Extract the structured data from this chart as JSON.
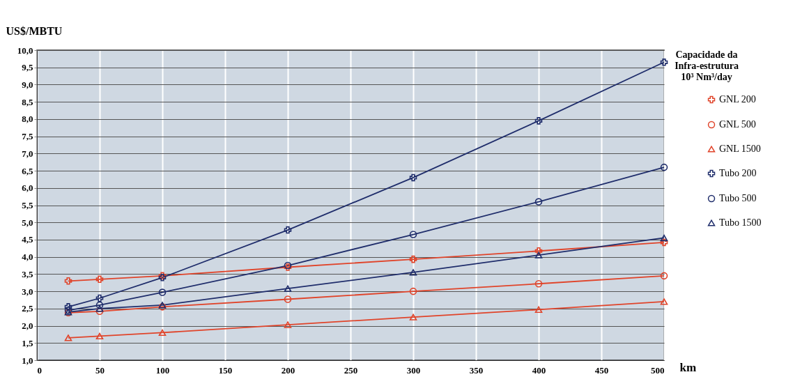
{
  "chart_data": {
    "type": "line",
    "ylabel": "US$/MBTU",
    "xlabel": "km",
    "legend_title": "Capacidade da\nInfra-estrutura\n10³ Nm³/day",
    "legend": "right",
    "grid": true,
    "x": [
      25,
      50,
      100,
      200,
      300,
      400,
      500
    ],
    "xlim": [
      0,
      500
    ],
    "xticks": [
      0,
      50,
      100,
      150,
      200,
      250,
      300,
      350,
      400,
      450,
      500
    ],
    "ylim": [
      1,
      10
    ],
    "yticks": [
      {
        "value": 1,
        "label": "1,0"
      },
      {
        "value": 1.5,
        "label": "1,5"
      },
      {
        "value": 2,
        "label": "2,0"
      },
      {
        "value": 2.5,
        "label": "2,5"
      },
      {
        "value": 3,
        "label": "3,0"
      },
      {
        "value": 3.5,
        "label": "3,5"
      },
      {
        "value": 4,
        "label": "4,0"
      },
      {
        "value": 4.5,
        "label": "4,5"
      },
      {
        "value": 5,
        "label": "5,0"
      },
      {
        "value": 5.5,
        "label": "5,5"
      },
      {
        "value": 6,
        "label": "6,0"
      },
      {
        "value": 6.5,
        "label": "6,5"
      },
      {
        "value": 7,
        "label": "7,0"
      },
      {
        "value": 7.5,
        "label": "7,5"
      },
      {
        "value": 8,
        "label": "8,0"
      },
      {
        "value": 8.5,
        "label": "8,5"
      },
      {
        "value": 9,
        "label": "9,0"
      },
      {
        "value": 9.5,
        "label": "9,5"
      },
      {
        "value": 10,
        "label": "10,0"
      }
    ],
    "series": [
      {
        "name": "GNL 200",
        "color": "#e0442a",
        "marker": "cross",
        "values": [
          3.3,
          3.35,
          3.45,
          3.7,
          3.93,
          4.17,
          4.42
        ]
      },
      {
        "name": "GNL 500",
        "color": "#e0442a",
        "marker": "circle",
        "values": [
          2.38,
          2.42,
          2.55,
          2.77,
          3.0,
          3.22,
          3.45
        ]
      },
      {
        "name": "GNL 1500",
        "color": "#e0442a",
        "marker": "triangle",
        "values": [
          1.65,
          1.7,
          1.8,
          2.03,
          2.25,
          2.47,
          2.7
        ]
      },
      {
        "name": "Tubo 200",
        "color": "#1f2d6b",
        "marker": "cross",
        "values": [
          2.55,
          2.8,
          3.4,
          4.78,
          6.3,
          7.95,
          9.65
        ]
      },
      {
        "name": "Tubo 500",
        "color": "#1f2d6b",
        "marker": "circle",
        "values": [
          2.45,
          2.6,
          2.97,
          3.75,
          4.65,
          5.6,
          6.6
        ]
      },
      {
        "name": "Tubo 1500",
        "color": "#1f2d6b",
        "marker": "triangle",
        "values": [
          2.4,
          2.5,
          2.6,
          3.08,
          3.55,
          4.05,
          4.55
        ]
      }
    ]
  }
}
